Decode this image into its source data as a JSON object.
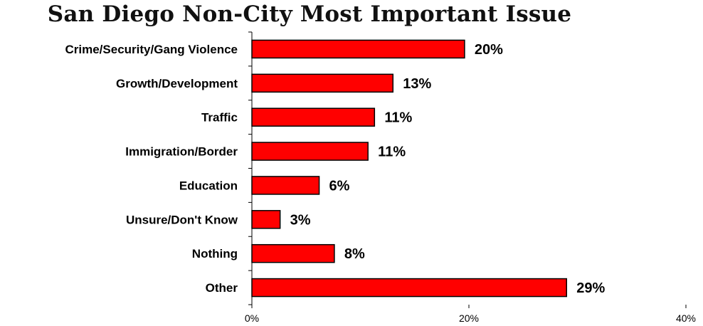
{
  "chart_data": {
    "type": "bar",
    "orientation": "horizontal",
    "title": "San Diego Non-City Most Important Issue",
    "categories": [
      "Crime/Security/Gang Violence",
      "Growth/Development",
      "Traffic",
      "Immigration/Border",
      "Education",
      "Unsure/Don't Know",
      "Nothing",
      "Other"
    ],
    "values": [
      19.6,
      13.0,
      11.3,
      10.7,
      6.2,
      2.6,
      7.6,
      29.0
    ],
    "data_labels": [
      "20%",
      "13%",
      "11%",
      "11%",
      "6%",
      "3%",
      "8%",
      "29%"
    ],
    "xlim": [
      0,
      40
    ],
    "xticks": [
      0,
      20,
      40
    ],
    "xtick_labels": [
      "0%",
      "20%",
      "40%"
    ],
    "grid": false,
    "legend": "none",
    "bar_color": "#ff0000"
  }
}
